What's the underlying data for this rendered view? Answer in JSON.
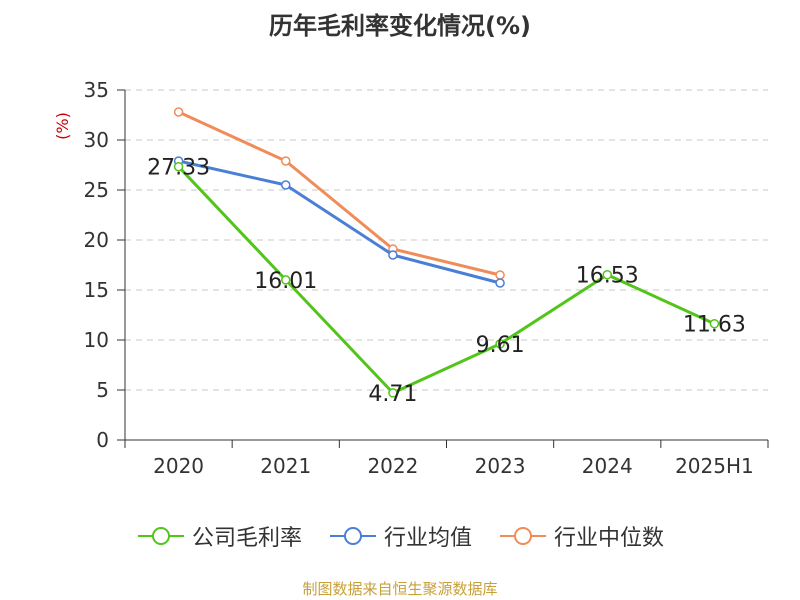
{
  "chart_data": {
    "type": "line",
    "title": "历年毛利率变化情况(%)",
    "ylabel": "(%)",
    "categories": [
      "2020",
      "2021",
      "2022",
      "2023",
      "2024",
      "2025H1"
    ],
    "ylim": [
      0,
      35
    ],
    "yticks": [
      0,
      5,
      10,
      15,
      20,
      25,
      30,
      35
    ],
    "grid": true,
    "legend_position": "bottom",
    "series": [
      {
        "name": "公司毛利率",
        "color": "#52c41a",
        "labels": true,
        "values": [
          27.33,
          16.01,
          4.71,
          9.61,
          16.53,
          11.63
        ]
      },
      {
        "name": "行业均值",
        "color": "#4a7fd6",
        "labels": false,
        "values": [
          27.9,
          25.5,
          18.5,
          15.7,
          null,
          null
        ]
      },
      {
        "name": "行业中位数",
        "color": "#f08c5a",
        "labels": false,
        "values": [
          32.8,
          27.9,
          19.1,
          16.5,
          null,
          null
        ]
      }
    ],
    "source": "制图数据来自恒生聚源数据库"
  }
}
